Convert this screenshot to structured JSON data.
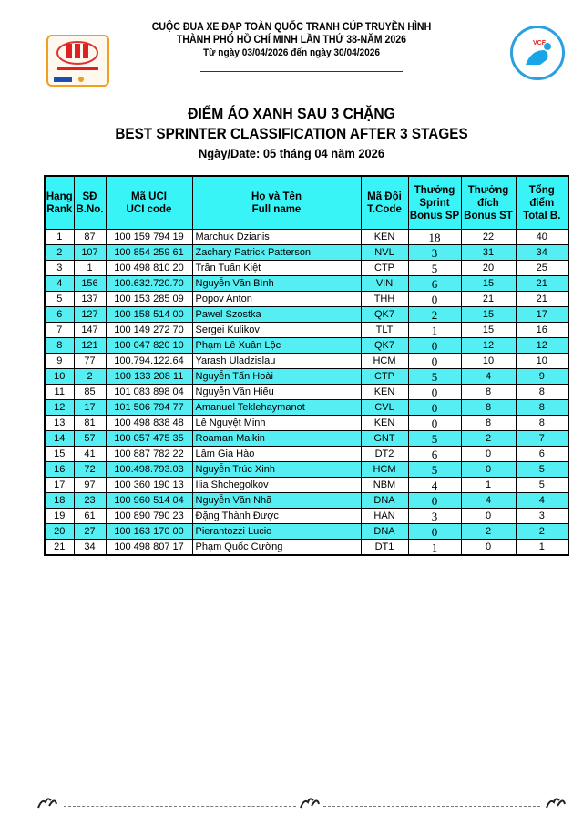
{
  "header": {
    "line1": "CUỘC ĐUA XE ĐẠP TOÀN QUỐC TRANH CÚP TRUYỀN HÌNH",
    "line2": "THÀNH PHỐ HỒ CHÍ MINH LẦN THỨ 38-NĂM 2026",
    "line3": "Từ ngày 03/04/2026 đến ngày 30/04/2026",
    "logo_left_text": "CÚP TRUYỀN HÌNH 2026 HTV TÔN ĐÔNG Á",
    "logo_right_text": "VCF"
  },
  "title": {
    "vi": "ĐIỂM ÁO XANH SAU 3 CHẶNG",
    "en": "BEST SPRINTER CLASSIFICATION AFTER  3 STAGES",
    "date": "Ngày/Date: 05 tháng 04 năm 2026"
  },
  "colors": {
    "header_bg": "#39f4f6",
    "alt_row_bg": "#55eef2"
  },
  "table": {
    "headers": [
      [
        "Hạng",
        "Rank"
      ],
      [
        "SĐ",
        "B.No."
      ],
      [
        "Mã UCI",
        "UCI code"
      ],
      [
        "Họ và Tên",
        "Full name"
      ],
      [
        "Mã Đội",
        "T.Code"
      ],
      [
        "Thưởng",
        "Sprint",
        "Bonus SP"
      ],
      [
        "Thưởng",
        "đích",
        "Bonus ST"
      ],
      [
        "Tổng",
        "điểm",
        "Total B."
      ]
    ],
    "rows": [
      [
        "1",
        "87",
        "100 159 794 19",
        "Marchuk Dzianis",
        "KEN",
        "18",
        "22",
        "40"
      ],
      [
        "2",
        "107",
        "100 854 259 61",
        "Zachary Patrick Patterson",
        "NVL",
        "3",
        "31",
        "34"
      ],
      [
        "3",
        "1",
        "100 498 810 20",
        "Trần Tuấn Kiệt",
        "CTP",
        "5",
        "20",
        "25"
      ],
      [
        "4",
        "156",
        "100.632.720.70",
        "Nguyễn Văn Bình",
        "VIN",
        "6",
        "15",
        "21"
      ],
      [
        "5",
        "137",
        "100 153 285 09",
        "Popov Anton",
        "THH",
        "0",
        "21",
        "21"
      ],
      [
        "6",
        "127",
        "100 158 514 00",
        "Pawel Szostka",
        "QK7",
        "2",
        "15",
        "17"
      ],
      [
        "7",
        "147",
        "100 149 272 70",
        "Sergei Kulikov",
        "TLT",
        "1",
        "15",
        "16"
      ],
      [
        "8",
        "121",
        "100 047 820 10",
        "Phạm Lê Xuân Lộc",
        "QK7",
        "0",
        "12",
        "12"
      ],
      [
        "9",
        "77",
        "100.794.122.64",
        "Yarash Uladzislau",
        "HCM",
        "0",
        "10",
        "10"
      ],
      [
        "10",
        "2",
        "100 133 208 11",
        "Nguyễn Tấn Hoài",
        "CTP",
        "5",
        "4",
        "9"
      ],
      [
        "11",
        "85",
        "101 083 898 04",
        "Nguyễn Văn Hiếu",
        "KEN",
        "0",
        "8",
        "8"
      ],
      [
        "12",
        "17",
        "101 506 794 77",
        "Amanuel Teklehaymanot",
        "CVL",
        "0",
        "8",
        "8"
      ],
      [
        "13",
        "81",
        "100 498 838 48",
        "Lê Nguyệt Minh",
        "KEN",
        "0",
        "8",
        "8"
      ],
      [
        "14",
        "57",
        "100 057 475 35",
        "Roaman Maikin",
        "GNT",
        "5",
        "2",
        "7"
      ],
      [
        "15",
        "41",
        "100 887 782 22",
        "Lâm Gia Hào",
        "DT2",
        "6",
        "0",
        "6"
      ],
      [
        "16",
        "72",
        "100.498.793.03",
        "Nguyễn Trúc Xinh",
        "HCM",
        "5",
        "0",
        "5"
      ],
      [
        "17",
        "97",
        "100 360 190 13",
        "Ilia Shchegolkov",
        "NBM",
        "4",
        "1",
        "5"
      ],
      [
        "18",
        "23",
        "100 960 514 04",
        "Nguyễn Văn Nhã",
        "DNA",
        "0",
        "4",
        "4"
      ],
      [
        "19",
        "61",
        "100 890 790 23",
        "Đặng Thành Được",
        "HAN",
        "3",
        "0",
        "3"
      ],
      [
        "20",
        "27",
        "100 163 170 00",
        "Pierantozzi Lucio",
        "DNA",
        "0",
        "2",
        "2"
      ],
      [
        "21",
        "34",
        "100 498 807 17",
        "Phạm Quốc Cường",
        "DT1",
        "1",
        "0",
        "1"
      ]
    ]
  }
}
